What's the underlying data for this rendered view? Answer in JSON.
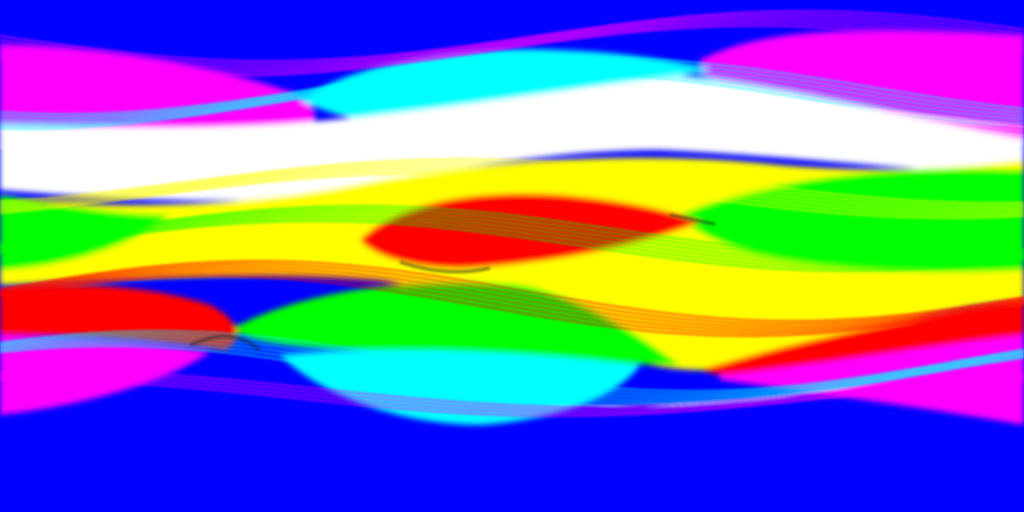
{
  "image": {
    "palette": {
      "background": "#0000ff",
      "magenta": "#ff00ff",
      "cyan": "#00ffff",
      "white": "#ffffff",
      "yellow": "#ffff00",
      "green": "#00ff00",
      "red": "#ff0000",
      "dark": "#202020"
    }
  }
}
